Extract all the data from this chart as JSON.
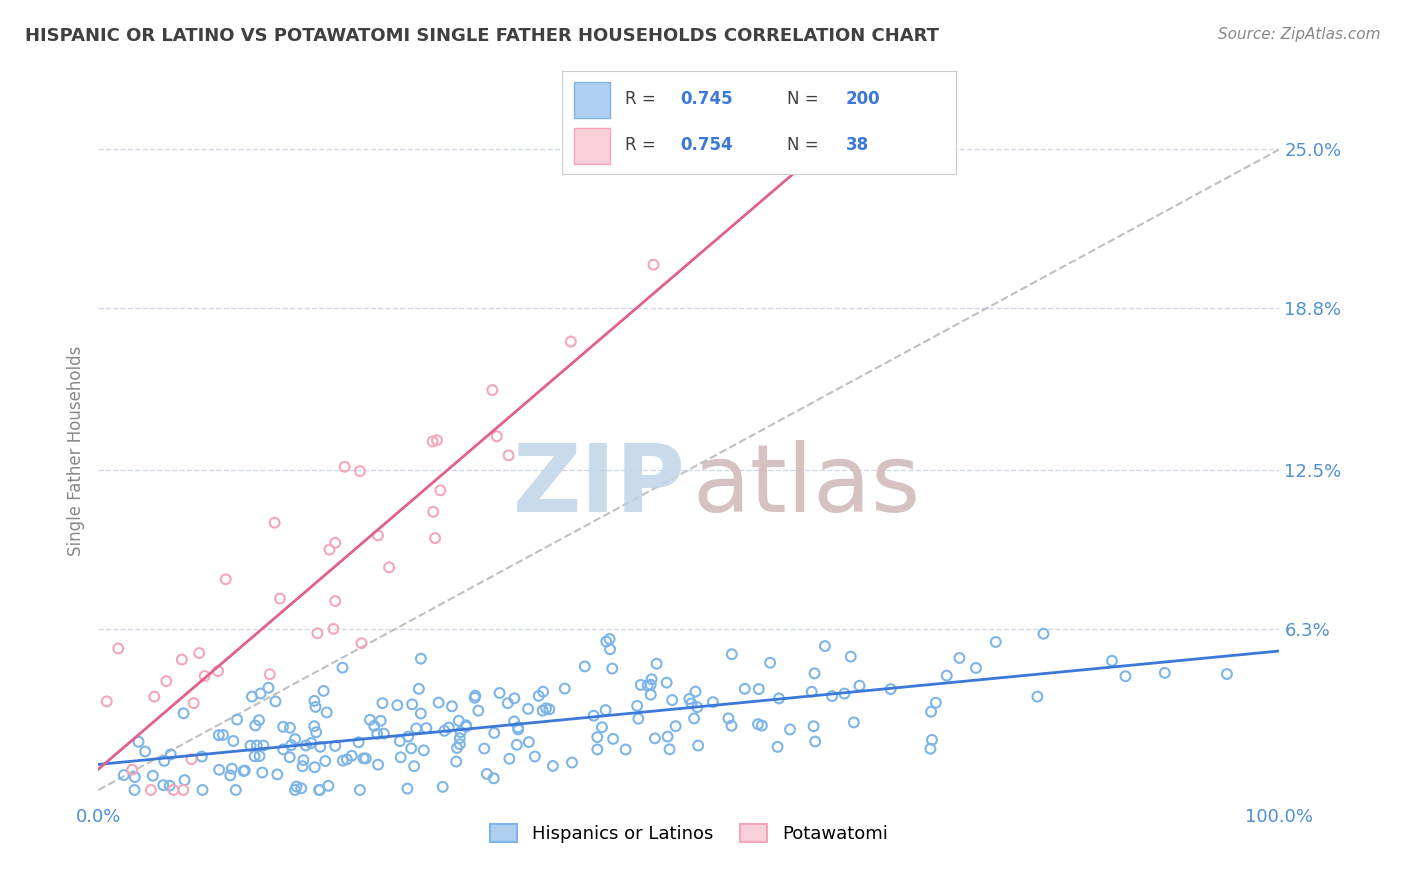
{
  "title": "HISPANIC OR LATINO VS POTAWATOMI SINGLE FATHER HOUSEHOLDS CORRELATION CHART",
  "source_text": "Source: ZipAtlas.com",
  "ylabel": "Single Father Households",
  "x_tick_labels": [
    "0.0%",
    "100.0%"
  ],
  "y_tick_labels": [
    "25.0%",
    "18.8%",
    "12.5%",
    "6.3%"
  ],
  "y_tick_values": [
    0.25,
    0.188,
    0.125,
    0.063
  ],
  "x_range": [
    0.0,
    1.0
  ],
  "y_range": [
    -0.005,
    0.27
  ],
  "legend_blue_R": "0.745",
  "legend_blue_N": "200",
  "legend_pink_R": "0.754",
  "legend_pink_N": "38",
  "blue_scatter_color": "#7eb5e8",
  "pink_scatter_color": "#f4a7b9",
  "blue_line_color": "#3c78d8",
  "pink_line_color": "#e06090",
  "dash_line_color": "#c0c0c0",
  "grid_color": "#d0d8e8",
  "background_color": "#ffffff",
  "title_color": "#404040",
  "label_color": "#5090d0",
  "watermark_color_zip": "#c0d4e8",
  "watermark_color_atlas": "#d0b8b8",
  "legend_blue_face": "#aecff0",
  "legend_pink_face": "#f9d0da",
  "bottom_legend_blue": "Hispanics or Latinos",
  "bottom_legend_pink": "Potawatomi"
}
